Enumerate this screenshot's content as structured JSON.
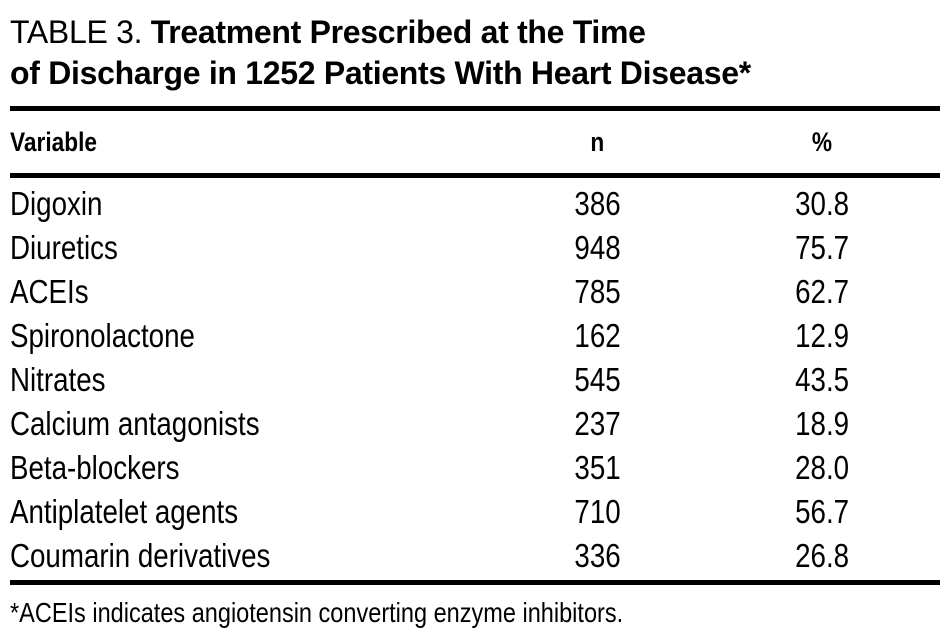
{
  "title": {
    "label": "TABLE 3.",
    "line1": "Treatment Prescribed at the Time",
    "line2": "of Discharge in 1252 Patients With Heart Disease*"
  },
  "table": {
    "columns": [
      "Variable",
      "n",
      "%"
    ],
    "rows": [
      {
        "variable": "Digoxin",
        "n": "386",
        "pct": "30.8"
      },
      {
        "variable": "Diuretics",
        "n": "948",
        "pct": "75.7"
      },
      {
        "variable": "ACEIs",
        "n": "785",
        "pct": "62.7"
      },
      {
        "variable": "Spironolactone",
        "n": "162",
        "pct": "12.9"
      },
      {
        "variable": "Nitrates",
        "n": "545",
        "pct": "43.5"
      },
      {
        "variable": "Calcium antagonists",
        "n": "237",
        "pct": "18.9"
      },
      {
        "variable": "Beta-blockers",
        "n": "351",
        "pct": "28.0"
      },
      {
        "variable": "Antiplatelet agents",
        "n": "710",
        "pct": "56.7"
      },
      {
        "variable": "Coumarin derivatives",
        "n": "336",
        "pct": "26.8"
      }
    ]
  },
  "footnote": {
    "text": "*ACEIs indicates angiotensin converting enzyme inhibitors."
  },
  "colors": {
    "background": "#ffffff",
    "text": "#000000",
    "rule": "#000000"
  }
}
